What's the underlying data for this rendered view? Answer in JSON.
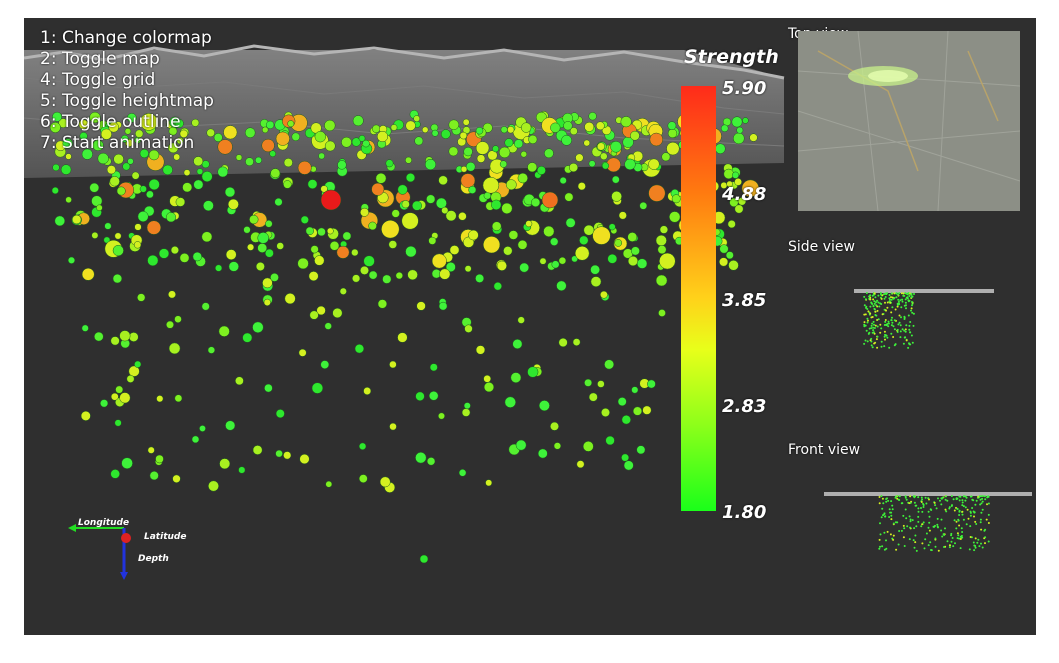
{
  "help_menu": {
    "items": [
      "1: Change colormap",
      "2: Toggle map",
      "4: Toggle grid",
      "5: Toggle heightmap",
      "6: Toggle outline",
      "7: Start animation"
    ]
  },
  "legend": {
    "title": "Strength",
    "ticks": [
      "5.90",
      "4.88",
      "3.85",
      "2.83",
      "1.80"
    ],
    "min": 1.8,
    "max": 5.9,
    "colors": [
      "#ff2b1a",
      "#ff7a10",
      "#ffd21a",
      "#e8ff1a",
      "#8cff1a",
      "#1aff1a"
    ]
  },
  "views": {
    "top": "Top view",
    "side": "Side view",
    "front": "Front view"
  },
  "axes": {
    "longitude": "Longitude",
    "latitude": "Latitude",
    "depth": "Depth"
  },
  "colors": {
    "background": "#2f2f2f",
    "longitude_axis": "#22dd22",
    "latitude_axis": "#dd2222",
    "depth_axis": "#2233dd"
  }
}
